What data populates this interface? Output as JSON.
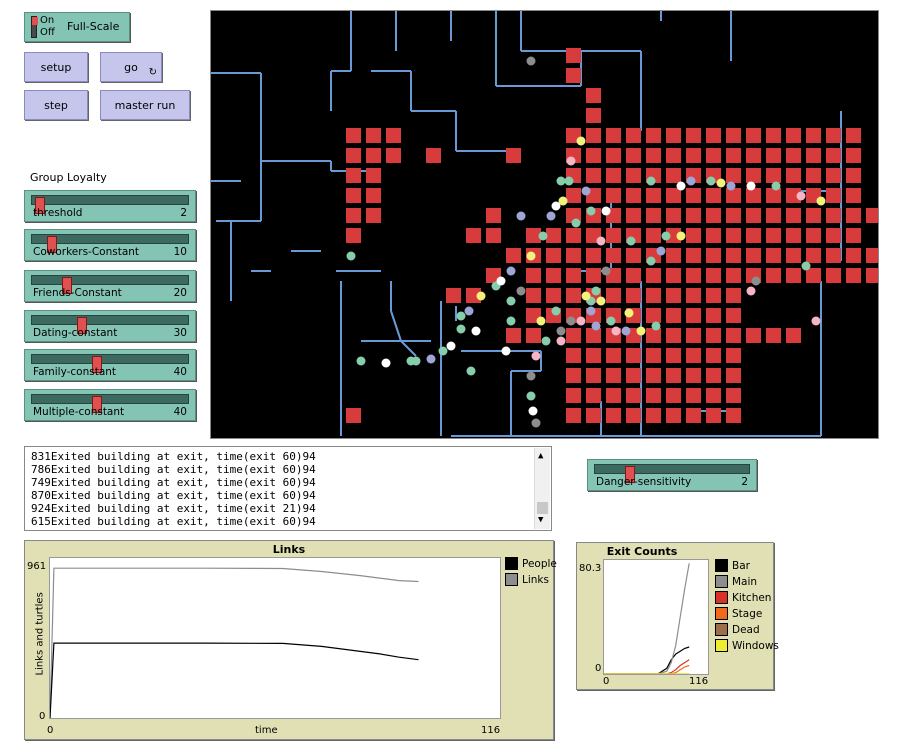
{
  "toggle": {
    "on_label": "On",
    "off_label": "Off",
    "label": "Full-Scale"
  },
  "buttons": {
    "setup": "setup",
    "go": "go",
    "step": "step",
    "master_run": "master run"
  },
  "group_label": "Group Loyalty",
  "sliders": [
    {
      "label": "threshold",
      "value": "2",
      "fraction": 0.02
    },
    {
      "label": "Coworkers-Constant",
      "value": "10",
      "fraction": 0.1
    },
    {
      "label": "Friends-Constant",
      "value": "20",
      "fraction": 0.2
    },
    {
      "label": "Dating-constant",
      "value": "30",
      "fraction": 0.3
    },
    {
      "label": "Family-constant",
      "value": "40",
      "fraction": 0.4
    },
    {
      "label": "Multiple-constant",
      "value": "40",
      "fraction": 0.4
    }
  ],
  "danger": {
    "label": "Danger-sensitivity",
    "value": "2",
    "fraction": 0.2
  },
  "log_lines": [
    "831Exited building at exit, time(exit 60)94",
    "786Exited building at exit, time(exit 60)94",
    "749Exited building at exit, time(exit 60)94",
    "870Exited building at exit, time(exit 60)94",
    "924Exited building at exit, time(exit 21)94",
    "615Exited building at exit, time(exit 60)94"
  ],
  "links_plot": {
    "title": "Links",
    "ylabel": "Links and turtles",
    "xlabel": "time",
    "ymax": "961",
    "ymin": "0",
    "xmin": "0",
    "xmax": "116",
    "legend": [
      {
        "name": "People",
        "color": "#000000"
      },
      {
        "name": "Links",
        "color": "#8d8d8d"
      }
    ]
  },
  "exit_plot": {
    "title": "Exit Counts",
    "ymax": "80.3",
    "ymin": "0",
    "xmin": "0",
    "xmax": "116",
    "legend": [
      {
        "name": "Bar",
        "color": "#000000"
      },
      {
        "name": "Main",
        "color": "#8d8d8d"
      },
      {
        "name": "Kitchen",
        "color": "#d73229"
      },
      {
        "name": "Stage",
        "color": "#f1691c"
      },
      {
        "name": "Dead",
        "color": "#9d6e48"
      },
      {
        "name": "Windows",
        "color": "#eded31"
      }
    ]
  },
  "chart_data": [
    {
      "type": "line",
      "title": "Links",
      "xlabel": "time",
      "ylabel": "Links and turtles",
      "xlim": [
        0,
        116
      ],
      "ylim": [
        0,
        961
      ],
      "x": [
        0,
        1,
        2,
        20,
        40,
        60,
        70,
        80,
        85,
        90,
        95
      ],
      "series": [
        {
          "name": "Links",
          "values": [
            0,
            900,
            900,
            900,
            900,
            898,
            880,
            855,
            840,
            825,
            820
          ]
        },
        {
          "name": "People",
          "values": [
            0,
            450,
            450,
            450,
            450,
            448,
            430,
            400,
            385,
            365,
            350
          ]
        }
      ]
    },
    {
      "type": "line",
      "title": "Exit Counts",
      "xlim": [
        0,
        116
      ],
      "ylim": [
        0,
        80.3
      ],
      "x": [
        0,
        60,
        70,
        75,
        80,
        85,
        90,
        95
      ],
      "series": [
        {
          "name": "Bar",
          "values": [
            0,
            0,
            4,
            10,
            14,
            16,
            18,
            19
          ]
        },
        {
          "name": "Main",
          "values": [
            0,
            0,
            2,
            8,
            20,
            40,
            60,
            78
          ]
        },
        {
          "name": "Kitchen",
          "values": [
            0,
            0,
            0,
            1,
            3,
            6,
            8,
            10
          ]
        },
        {
          "name": "Stage",
          "values": [
            0,
            0,
            0,
            0,
            1,
            3,
            5,
            6
          ]
        },
        {
          "name": "Dead",
          "values": [
            0,
            0,
            0,
            0,
            0,
            0,
            0,
            0
          ]
        },
        {
          "name": "Windows",
          "values": [
            0,
            0,
            0,
            0,
            0,
            0,
            0,
            0
          ]
        }
      ]
    }
  ]
}
